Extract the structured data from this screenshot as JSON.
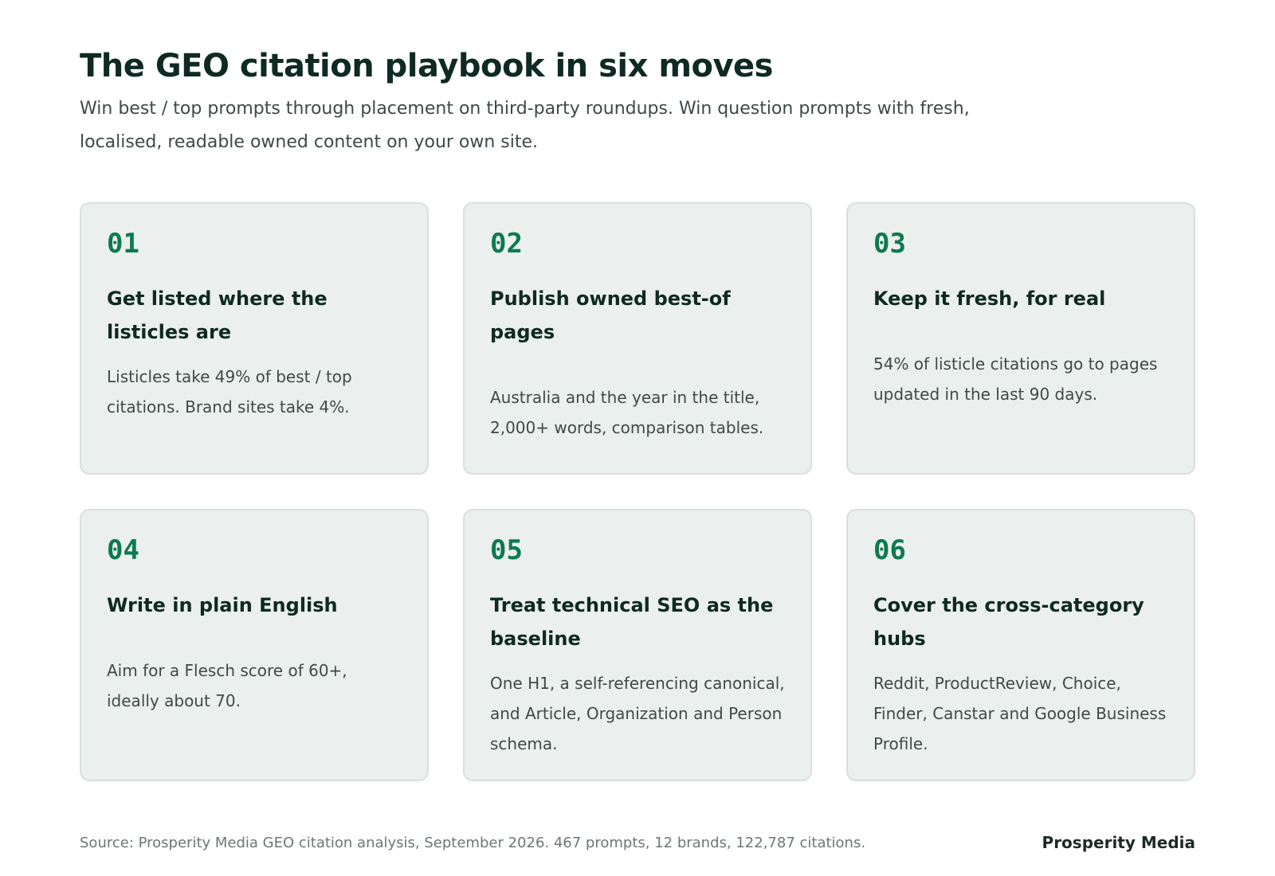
{
  "header": {
    "title": "The GEO citation playbook in six moves",
    "subtitle": "Win best / top prompts through placement on third-party roundups. Win question prompts with fresh, localised, readable owned content on your own site."
  },
  "cards": [
    {
      "number": "01",
      "title": "Get listed where the listicles are",
      "body": "Listicles take 49% of best / top citations. Brand sites take 4%."
    },
    {
      "number": "02",
      "title": "Publish owned best-of pages",
      "body": "Australia and the year in the title, 2,000+ words, comparison tables."
    },
    {
      "number": "03",
      "title": "Keep it fresh, for real",
      "body": "54% of listicle citations go to pages updated in the last 90 days."
    },
    {
      "number": "04",
      "title": "Write in plain English",
      "body": "Aim for a Flesch score of 60+, ideally about 70."
    },
    {
      "number": "05",
      "title": "Treat technical SEO as the baseline",
      "body": "One H1, a self-referencing canonical, and Article, Organization and Person schema."
    },
    {
      "number": "06",
      "title": "Cover the cross-category hubs",
      "body": "Reddit, ProductReview, Choice, Finder, Canstar and Google Business Profile."
    }
  ],
  "footer": {
    "source": "Source: Prosperity Media GEO citation analysis, September 2026. 467 prompts, 12 brands, 122,787 citations.",
    "brand": "Prosperity Media"
  },
  "colors": {
    "accent": "#0d7a4f",
    "heading": "#0e2a22",
    "card_bg": "#ebefed",
    "card_border": "#d8e0dd"
  }
}
